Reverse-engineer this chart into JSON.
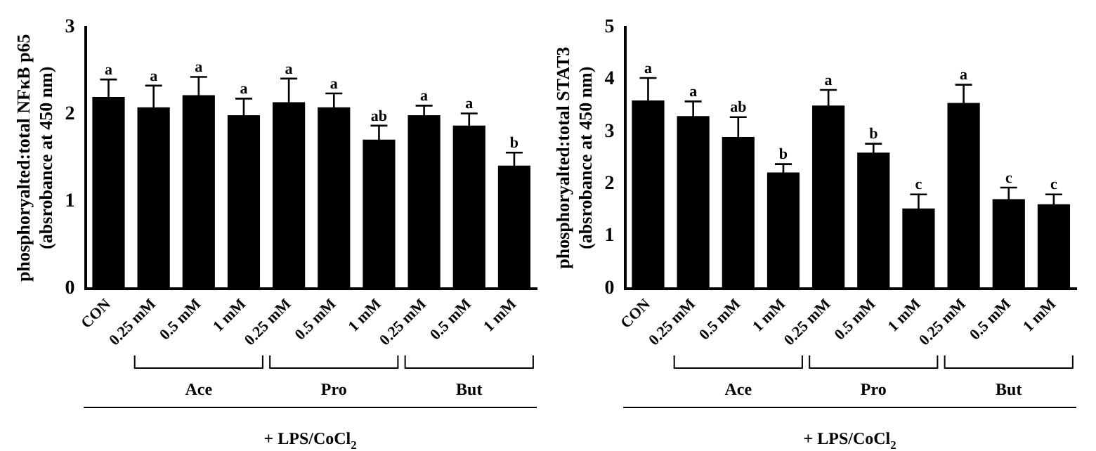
{
  "chart_data": [
    {
      "type": "bar",
      "ylabel": "phosphoryalted:total NFκB p65\n(absrobance at 450 nm)",
      "categories": [
        "CON",
        "0.25 mM",
        "0.5 mM",
        "1 mM",
        "0.25 mM",
        "0.5 mM",
        "1 mM",
        "0.25 mM",
        "0.5 mM",
        "1 mM"
      ],
      "values": [
        2.2,
        2.08,
        2.22,
        1.99,
        2.14,
        2.08,
        1.71,
        1.99,
        1.87,
        1.41
      ],
      "errors": [
        0.2,
        0.25,
        0.21,
        0.19,
        0.27,
        0.16,
        0.16,
        0.11,
        0.14,
        0.15
      ],
      "value_labels": [
        "a",
        "a",
        "a",
        "a",
        "a",
        "a",
        "ab",
        "a",
        "a",
        "b"
      ],
      "color": "#000000",
      "ylim": [
        0,
        3
      ],
      "yticks": [
        0,
        1,
        2,
        3
      ],
      "grid": false,
      "legend": false,
      "annotations": [
        "Ace",
        "Pro",
        "But",
        "+ LPS/CoCl$_{2}$"
      ]
    },
    {
      "type": "bar",
      "ylabel": "phosphoryalted:total STAT3\n(absrobance at 450 nm)",
      "categories": [
        "CON",
        "0.25 mM",
        "0.5 mM",
        "1 mM",
        "0.25 mM",
        "0.5 mM",
        "1 mM",
        "0.25 mM",
        "0.5 mM",
        "1 mM"
      ],
      "values": [
        3.6,
        3.3,
        2.9,
        2.22,
        3.5,
        2.6,
        1.53,
        3.55,
        1.71,
        1.61
      ],
      "errors": [
        0.43,
        0.28,
        0.38,
        0.16,
        0.3,
        0.17,
        0.27,
        0.35,
        0.22,
        0.19
      ],
      "value_labels": [
        "a",
        "a",
        "ab",
        "b",
        "a",
        "b",
        "c",
        "a",
        "c",
        "c"
      ],
      "color": "#000000",
      "ylim": [
        0,
        5
      ],
      "yticks": [
        0,
        1,
        2,
        3,
        4,
        5
      ],
      "grid": false,
      "legend": false,
      "annotations": [
        "Ace",
        "Pro",
        "But",
        "+ LPS/CoCl$_{2}$"
      ]
    }
  ]
}
